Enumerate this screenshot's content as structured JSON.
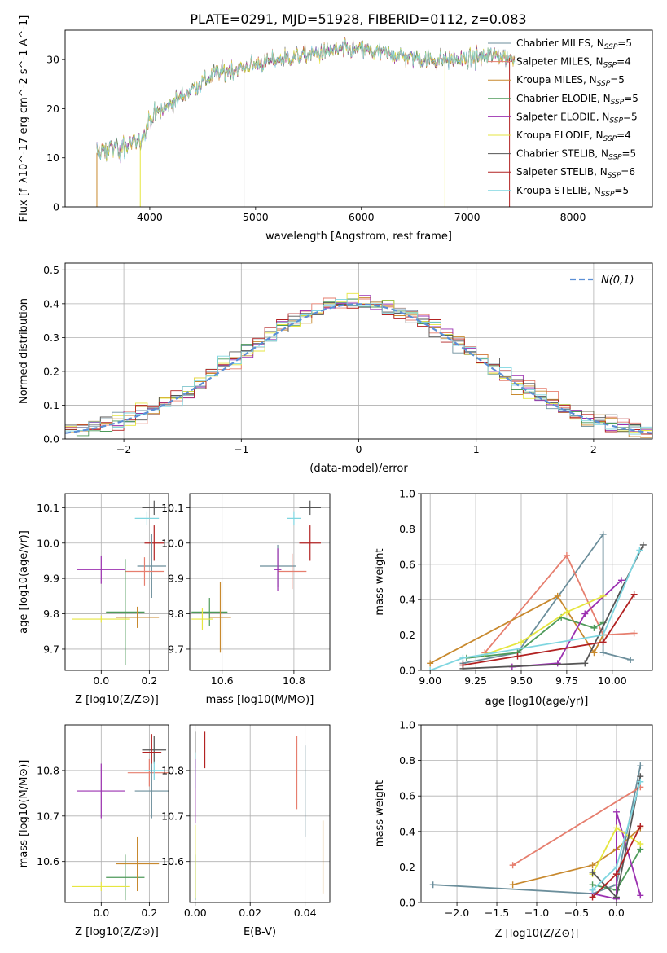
{
  "title": "PLATE=0291, MJD=51928, FIBERID=0112, z=0.083",
  "colors": [
    "#6b8e9b",
    "#e67e6e",
    "#c8892e",
    "#4e9a5a",
    "#9b30b0",
    "#e6e640",
    "#555555",
    "#b22222",
    "#7fd6e0"
  ],
  "legend_entries": [
    "Chabrier MILES, N_SSP=5",
    "Salpeter MILES, N_SSP=4",
    "Kroupa MILES, N_SSP=5",
    "Chabrier ELODIE, N_SSP=5",
    "Salpeter ELODIE, N_SSP=5",
    "Kroupa ELODIE, N_SSP=4",
    "Chabrier STELIB, N_SSP=5",
    "Salpeter STELIB, N_SSP=6",
    "Kroupa STELIB, N_SSP=5"
  ],
  "chart_data": [
    {
      "type": "line",
      "id": "spectrum",
      "xlabel": "wavelength [Angstrom, rest frame]",
      "ylabel": "Flux [f_λ10^-17 erg cm^-2 s^-1 A^-1]",
      "xlim": [
        3200,
        8750
      ],
      "ylim": [
        0,
        36
      ],
      "xticks": [
        4000,
        5000,
        6000,
        7000,
        8000
      ],
      "yticks": [
        0,
        10,
        20,
        30
      ],
      "grid": false,
      "legend": "right",
      "continuum": {
        "x": [
          3500,
          3650,
          3800,
          3900,
          4000,
          4200,
          4400,
          4600,
          4800,
          5000,
          5200,
          5500,
          5800,
          6000,
          6300,
          6600,
          7000,
          7300,
          7450
        ],
        "y": [
          11,
          12,
          12.5,
          13,
          18,
          21,
          24,
          27,
          28,
          29,
          30,
          31,
          32,
          32,
          31,
          30,
          30,
          31,
          30
        ]
      }
    },
    {
      "type": "line",
      "id": "residuals",
      "xlabel": "(data-model)/error",
      "ylabel": "Normed distribution",
      "xlim": [
        -2.5,
        2.5
      ],
      "ylim": [
        0,
        0.52
      ],
      "xticks": [
        -2,
        -1,
        0,
        1,
        2
      ],
      "yticks": [
        0.0,
        0.1,
        0.2,
        0.3,
        0.4,
        0.5
      ],
      "grid": true,
      "legend": "top-right",
      "reference_series": "N(0,1)",
      "bins": 50
    },
    {
      "type": "scatter",
      "id": "age-vs-Z",
      "xlabel": "Z [log10(Z/Z⊙)]",
      "ylabel": "age [log10(age/yr)]",
      "xlim": [
        -0.15,
        0.28
      ],
      "ylim": [
        9.64,
        10.14
      ],
      "xticks": [
        0.0,
        0.2
      ],
      "yticks": [
        9.7,
        9.8,
        9.9,
        10.0,
        10.1
      ],
      "grid": true,
      "points": [
        {
          "x": 0.22,
          "y": 10.1,
          "xerr": 0.05,
          "yerr": 0.02,
          "c": 6
        },
        {
          "x": 0.19,
          "y": 10.07,
          "xerr": 0.05,
          "yerr": 0.02,
          "c": 8
        },
        {
          "x": 0.22,
          "y": 10.0,
          "xerr": 0.04,
          "yerr": 0.05,
          "c": 7
        },
        {
          "x": 0.21,
          "y": 9.935,
          "xerr": 0.06,
          "yerr": 0.09,
          "c": 0
        },
        {
          "x": 0.18,
          "y": 9.92,
          "xerr": 0.08,
          "yerr": 0.04,
          "c": 1
        },
        {
          "x": 0.0,
          "y": 9.925,
          "xerr": 0.1,
          "yerr": 0.04,
          "c": 4
        },
        {
          "x": 0.1,
          "y": 9.805,
          "xerr": 0.08,
          "yerr": 0.15,
          "c": 3
        },
        {
          "x": 0.15,
          "y": 9.79,
          "xerr": 0.09,
          "yerr": 0.03,
          "c": 2
        },
        {
          "x": 0.0,
          "y": 9.785,
          "xerr": 0.12,
          "yerr": 0.01,
          "c": 5
        }
      ]
    },
    {
      "type": "scatter",
      "id": "age-vs-mass",
      "xlabel": "mass [log10(M/M⊙)]",
      "ylabel": "",
      "xlim": [
        10.51,
        10.9
      ],
      "ylim": [
        9.64,
        10.14
      ],
      "xticks": [
        10.6,
        10.8
      ],
      "yticks": [
        9.7,
        9.8,
        9.9,
        10.0,
        10.1
      ],
      "grid": true,
      "points": [
        {
          "x": 10.845,
          "y": 10.1,
          "xerr": 0.03,
          "yerr": 0.02,
          "c": 6
        },
        {
          "x": 10.8,
          "y": 10.07,
          "xerr": 0.02,
          "yerr": 0.02,
          "c": 8
        },
        {
          "x": 10.845,
          "y": 10.0,
          "xerr": 0.03,
          "yerr": 0.05,
          "c": 7
        },
        {
          "x": 10.755,
          "y": 9.935,
          "xerr": 0.05,
          "yerr": 0.06,
          "c": 0
        },
        {
          "x": 10.795,
          "y": 9.92,
          "xerr": 0.04,
          "yerr": 0.05,
          "c": 1
        },
        {
          "x": 10.755,
          "y": 9.925,
          "xerr": 0.01,
          "yerr": 0.06,
          "c": 4
        },
        {
          "x": 10.565,
          "y": 9.805,
          "xerr": 0.05,
          "yerr": 0.04,
          "c": 3
        },
        {
          "x": 10.595,
          "y": 9.79,
          "xerr": 0.03,
          "yerr": 0.1,
          "c": 2
        },
        {
          "x": 10.545,
          "y": 9.785,
          "xerr": 0.03,
          "yerr": 0.03,
          "c": 5
        }
      ]
    },
    {
      "type": "line",
      "id": "mass-weight-vs-age",
      "xlabel": "age [log10(age/yr)]",
      "ylabel": "mass weight",
      "xlim": [
        8.95,
        10.22
      ],
      "ylim": [
        0.0,
        1.0
      ],
      "xticks": [
        9.0,
        9.25,
        9.5,
        9.75,
        10.0
      ],
      "yticks": [
        0.0,
        0.2,
        0.4,
        0.6,
        0.8,
        1.0
      ],
      "grid": true,
      "series": [
        {
          "c": 0,
          "x": [
            9.18,
            9.48,
            9.95,
            9.95,
            10.1
          ],
          "y": [
            0.04,
            0.1,
            0.77,
            0.1,
            0.06
          ]
        },
        {
          "c": 1,
          "x": [
            9.3,
            9.75,
            9.95,
            10.12
          ],
          "y": [
            0.1,
            0.65,
            0.2,
            0.21
          ]
        },
        {
          "c": 2,
          "x": [
            9.0,
            9.7,
            9.9,
            9.95
          ],
          "y": [
            0.04,
            0.42,
            0.1,
            0.2
          ]
        },
        {
          "c": 3,
          "x": [
            9.2,
            9.48,
            9.72,
            9.9,
            9.95
          ],
          "y": [
            0.07,
            0.1,
            0.3,
            0.24,
            0.27
          ]
        },
        {
          "c": 4,
          "x": [
            9.45,
            9.7,
            9.85,
            10.05
          ],
          "y": [
            0.02,
            0.04,
            0.32,
            0.51
          ]
        },
        {
          "c": 5,
          "x": [
            9.3,
            9.5,
            9.75,
            9.95
          ],
          "y": [
            0.09,
            0.16,
            0.33,
            0.42
          ]
        },
        {
          "c": 6,
          "x": [
            9.18,
            9.85,
            10.17
          ],
          "y": [
            0.01,
            0.04,
            0.71
          ]
        },
        {
          "c": 7,
          "x": [
            9.18,
            9.48,
            9.95,
            10.12
          ],
          "y": [
            0.03,
            0.08,
            0.16,
            0.43
          ]
        },
        {
          "c": 8,
          "x": [
            9.0,
            9.18,
            9.95,
            10.15
          ],
          "y": [
            0.0,
            0.07,
            0.2,
            0.68
          ]
        }
      ]
    },
    {
      "type": "scatter",
      "id": "mass-vs-Z",
      "xlabel": "Z [log10(Z/Z⊙)]",
      "ylabel": "mass [log10(M/M⊙)]",
      "xlim": [
        -0.15,
        0.28
      ],
      "ylim": [
        10.51,
        10.9
      ],
      "xticks": [
        0.0,
        0.2
      ],
      "yticks": [
        10.6,
        10.7,
        10.8
      ],
      "grid": true,
      "points": [
        {
          "x": 0.22,
          "y": 10.845,
          "xerr": 0.05,
          "yerr": 0.03,
          "c": 6
        },
        {
          "x": 0.21,
          "y": 10.84,
          "xerr": 0.04,
          "yerr": 0.04,
          "c": 7
        },
        {
          "x": 0.2,
          "y": 10.795,
          "xerr": 0.09,
          "yerr": 0.03,
          "c": 1
        },
        {
          "x": 0.22,
          "y": 10.8,
          "xerr": 0.04,
          "yerr": 0.02,
          "c": 8
        },
        {
          "x": 0.21,
          "y": 10.755,
          "xerr": 0.07,
          "yerr": 0.06,
          "c": 0
        },
        {
          "x": 0.0,
          "y": 10.755,
          "xerr": 0.1,
          "yerr": 0.06,
          "c": 4
        },
        {
          "x": 0.1,
          "y": 10.565,
          "xerr": 0.08,
          "yerr": 0.05,
          "c": 3
        },
        {
          "x": 0.15,
          "y": 10.595,
          "xerr": 0.09,
          "yerr": 0.06,
          "c": 2
        },
        {
          "x": 0.0,
          "y": 10.545,
          "xerr": 0.12,
          "yerr": 0.01,
          "c": 5
        }
      ]
    },
    {
      "type": "scatter",
      "id": "mass-vs-ebv",
      "xlabel": "E(B-V)",
      "ylabel": "",
      "xlim": [
        -0.002,
        0.049
      ],
      "ylim": [
        10.51,
        10.9
      ],
      "xticks": [
        0.0,
        0.02,
        0.04
      ],
      "yticks": [
        10.6,
        10.7,
        10.8
      ],
      "grid": true,
      "points": [
        {
          "x": 0.0,
          "y": 10.845,
          "xerr": 0,
          "yerr": 0.04,
          "c": 6
        },
        {
          "x": 0.0035,
          "y": 10.845,
          "xerr": 0,
          "yerr": 0.04,
          "c": 7
        },
        {
          "x": 0.0,
          "y": 10.8,
          "xerr": 0,
          "yerr": 0.04,
          "c": 8
        },
        {
          "x": 0.037,
          "y": 10.795,
          "xerr": 0,
          "yerr": 0.08,
          "c": 1
        },
        {
          "x": 0.04,
          "y": 10.755,
          "xerr": 0,
          "yerr": 0.1,
          "c": 0
        },
        {
          "x": 0.0,
          "y": 10.755,
          "xerr": 0,
          "yerr": 0.07,
          "c": 4
        },
        {
          "x": 0.0,
          "y": 10.565,
          "xerr": 0,
          "yerr": 0.05,
          "c": 3
        },
        {
          "x": 0.0465,
          "y": 10.61,
          "xerr": 0,
          "yerr": 0.08,
          "c": 2
        },
        {
          "x": 0.0,
          "y": 10.6,
          "xerr": 0,
          "yerr": 0.08,
          "c": 5
        }
      ]
    },
    {
      "type": "line",
      "id": "mass-weight-vs-Z",
      "xlabel": "Z [log10(Z/Z⊙)]",
      "ylabel": "mass weight",
      "xlim": [
        -2.45,
        0.45
      ],
      "ylim": [
        0.0,
        1.0
      ],
      "xticks": [
        -2.0,
        -1.5,
        -1.0,
        -0.5,
        0.0
      ],
      "yticks": [
        0.0,
        0.2,
        0.4,
        0.6,
        0.8,
        1.0
      ],
      "grid": true,
      "series": [
        {
          "c": 0,
          "x": [
            -2.3,
            -0.3,
            0.0,
            0.3
          ],
          "y": [
            0.1,
            0.05,
            0.1,
            0.77
          ]
        },
        {
          "c": 1,
          "x": [
            -1.3,
            0.3
          ],
          "y": [
            0.21,
            0.65
          ]
        },
        {
          "c": 2,
          "x": [
            -1.3,
            -0.3,
            0.0,
            0.3
          ],
          "y": [
            0.1,
            0.21,
            0.3,
            0.42
          ]
        },
        {
          "c": 3,
          "x": [
            -0.3,
            0.0,
            0.3
          ],
          "y": [
            0.1,
            0.07,
            0.3
          ]
        },
        {
          "c": 4,
          "x": [
            -0.3,
            0.0,
            0.0,
            0.3
          ],
          "y": [
            0.05,
            0.02,
            0.51,
            0.04
          ]
        },
        {
          "c": 5,
          "x": [
            -0.3,
            0.0,
            0.3
          ],
          "y": [
            0.16,
            0.42,
            0.33
          ]
        },
        {
          "c": 6,
          "x": [
            -0.3,
            0.0,
            0.3
          ],
          "y": [
            0.17,
            0.03,
            0.71
          ]
        },
        {
          "c": 7,
          "x": [
            -0.3,
            0.0,
            0.3
          ],
          "y": [
            0.03,
            0.16,
            0.43
          ]
        },
        {
          "c": 8,
          "x": [
            -0.3,
            0.0,
            0.3
          ],
          "y": [
            0.07,
            0.2,
            0.68
          ]
        }
      ]
    }
  ]
}
